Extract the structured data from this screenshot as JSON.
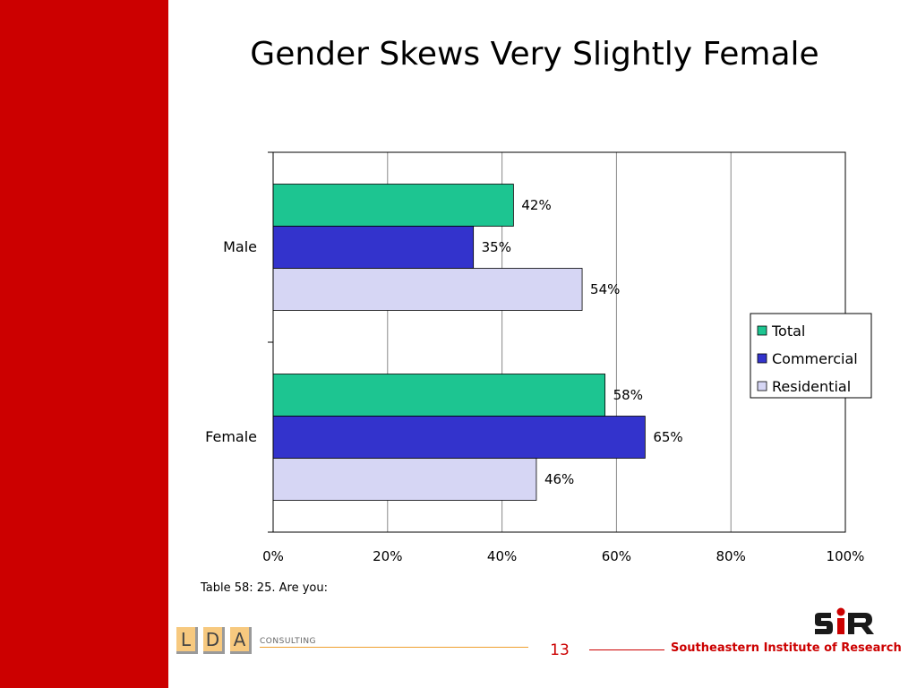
{
  "slide": {
    "title": "Gender Skews Very Slightly Female",
    "caption": "Table 58: 25. Are you:",
    "page_number": "13",
    "organization": "Southeastern Institute of Research",
    "lda_letters": [
      "L",
      "D",
      "A"
    ],
    "consulting_label": "CONSULTING"
  },
  "colors": {
    "side_band": "#cc0000",
    "accent_red": "#cc0000",
    "logo_dark": "#1a1a1a"
  },
  "chart_data": {
    "type": "bar",
    "orientation": "horizontal",
    "categories": [
      "Male",
      "Female"
    ],
    "series": [
      {
        "name": "Total",
        "color": "#1dc591",
        "values": [
          42,
          58
        ],
        "labels": [
          "42%",
          "58%"
        ]
      },
      {
        "name": "Commercial",
        "color": "#3333cc",
        "values": [
          35,
          65
        ],
        "labels": [
          "35%",
          "65%"
        ]
      },
      {
        "name": "Residential",
        "color": "#d6d6f4",
        "values": [
          54,
          46
        ],
        "labels": [
          "54%",
          "46%"
        ]
      }
    ],
    "xticks": [
      "0%",
      "20%",
      "40%",
      "60%",
      "80%",
      "100%"
    ],
    "xlim": [
      0,
      100
    ],
    "grid": true,
    "legend": "right"
  }
}
